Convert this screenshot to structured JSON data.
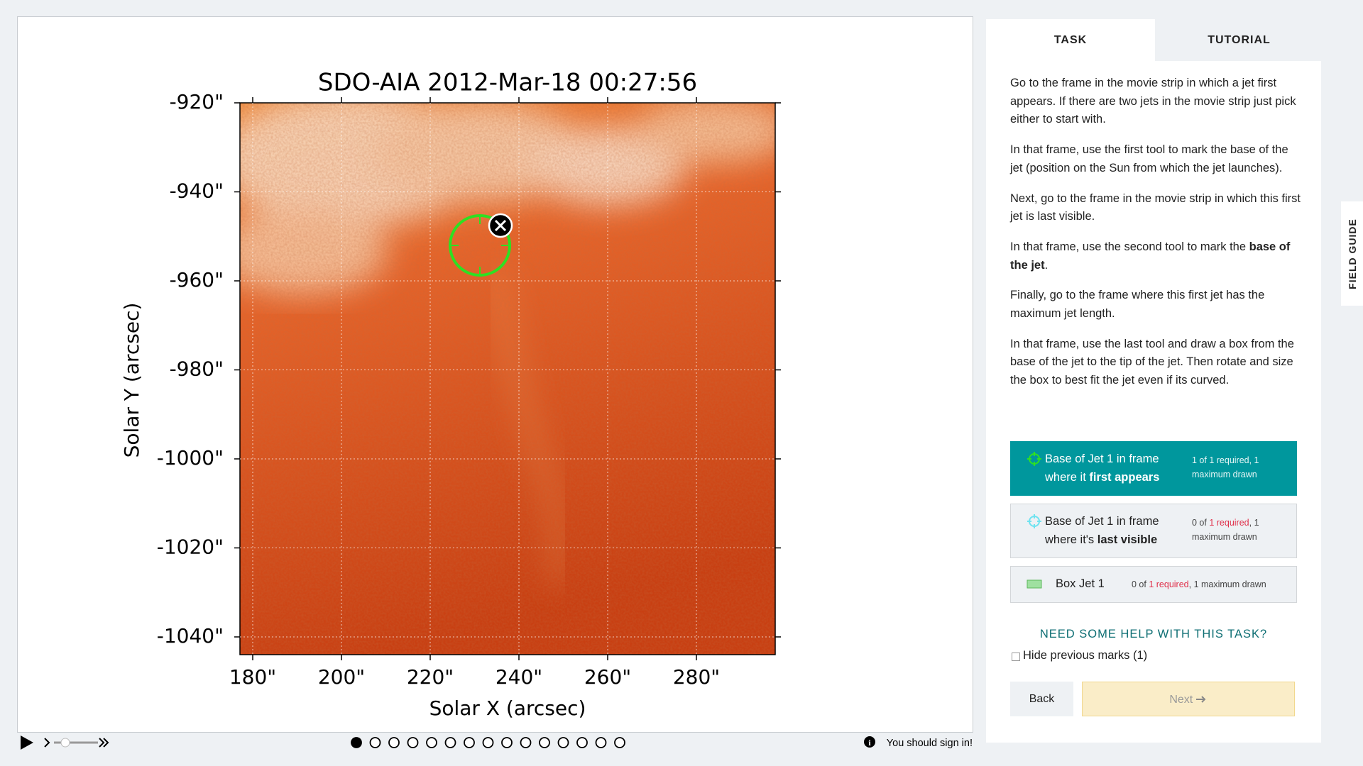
{
  "viewer": {
    "title": "SDO-AIA   2012-Mar-18 00:27:56",
    "y_axis_label": "Solar Y (arcsec)",
    "x_axis_label": "Solar X (arcsec)",
    "y_ticks": [
      "-920\"",
      "-940\"",
      "-960\"",
      "-980\"",
      "-1000\"",
      "-1020\"",
      "-1040\""
    ],
    "x_ticks": [
      "180\"",
      "200\"",
      "220\"",
      "240\"",
      "260\"",
      "280\""
    ]
  },
  "sign_in": "You should sign in!",
  "tabs": [
    "TASK",
    "TUTORIAL"
  ],
  "field_guide": "FIELD GUIDE",
  "instructions": [
    [
      {
        "text": "Go to the frame in the movie strip in which a jet first appears. If there are two jets in the movie strip just pick either to start with."
      }
    ],
    [
      {
        "text": "In that frame, use the first tool to mark the base of the jet (position on the Sun from which the jet launches)."
      }
    ],
    [
      {
        "text": "Next, go to the frame in the movie strip in which this first jet is last visible."
      }
    ],
    [
      {
        "text": "In that frame, use the second tool to mark the "
      },
      {
        "text": "base of the jet",
        "bold": true
      },
      {
        "text": "."
      }
    ],
    [
      {
        "text": "Finally, go to the frame where this first jet has the maximum jet length."
      }
    ],
    [
      {
        "text": "In that frame, use the last tool and draw a box from the base of the jet to the tip of the jet. Then rotate and size the box to best fit the jet even if its curved."
      }
    ]
  ],
  "tools": [
    {
      "label": [
        {
          "text": "Base of Jet 1 in frame where it "
        },
        {
          "text": "first appears",
          "bold": true
        }
      ],
      "status": [
        {
          "text": "1 of 1 required, 1 maximum drawn"
        }
      ]
    },
    {
      "label": [
        {
          "text": "Base of Jet 1 in frame where it's "
        },
        {
          "text": "last visible",
          "bold": true
        }
      ],
      "status": [
        {
          "text": "0 of "
        },
        {
          "text": "1 required",
          "red": true
        },
        {
          "text": ", 1 maximum drawn"
        }
      ]
    },
    {
      "label": [
        {
          "text": "Box Jet 1"
        }
      ],
      "status": [
        {
          "text": "0 of "
        },
        {
          "text": "1 required",
          "red": true
        },
        {
          "text": ", 1 maximum drawn"
        }
      ]
    }
  ],
  "help": "NEED SOME HELP WITH THIS TASK?",
  "hide_marks": "Hide previous marks (1)",
  "back": "Back",
  "next": "Next"
}
